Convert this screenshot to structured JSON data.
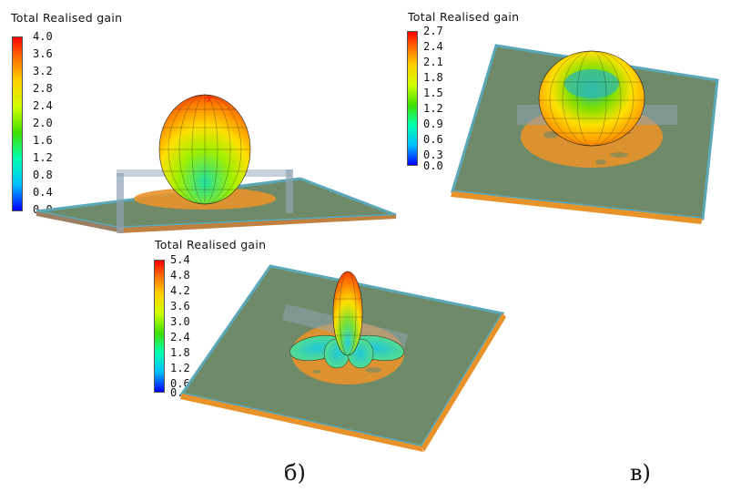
{
  "panels": [
    {
      "title": "Total Realised gain",
      "ticks": [
        "4.0",
        "3.6",
        "3.2",
        "2.8",
        "2.4",
        "2.0",
        "1.6",
        "1.2",
        "0.8",
        "0.4",
        "0.0"
      ]
    },
    {
      "title": "Total Realised gain",
      "ticks": [
        "2.7",
        "2.4",
        "2.1",
        "1.8",
        "1.5",
        "1.2",
        "0.9",
        "0.6",
        "0.3",
        "0.0"
      ]
    },
    {
      "title": "Total Realised gain",
      "ticks": [
        "5.4",
        "4.8",
        "4.2",
        "3.6",
        "3.0",
        "2.4",
        "1.8",
        "1.2",
        "0.6",
        "0.0"
      ]
    }
  ],
  "captions": {
    "b": "б)",
    "c": "в)"
  },
  "colors": {
    "board": "#6f8a68",
    "board_edge": "#5aa8b8",
    "ground": "#e8922a",
    "high_gain": "#ff3a00",
    "low_gain": "#00c8ff"
  }
}
